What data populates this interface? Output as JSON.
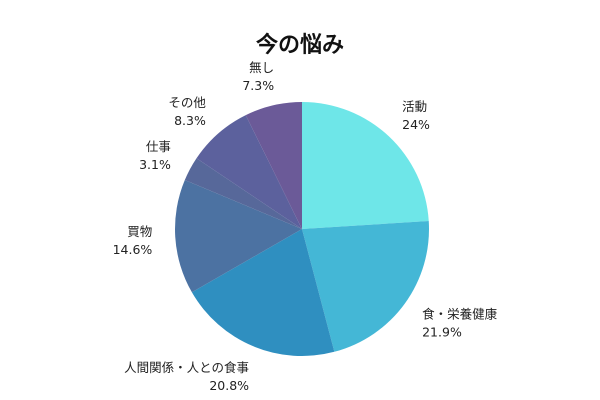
{
  "chart_data": {
    "type": "pie",
    "title": "今の悩み",
    "start_angle_deg": 0,
    "direction": "clockwise",
    "slices": [
      {
        "label": "活動",
        "value": 24.0,
        "value_label": "24%",
        "color": "#6ee6e8"
      },
      {
        "label": "食・栄養健康",
        "value": 21.9,
        "value_label": "21.9%",
        "color": "#44b7d6"
      },
      {
        "label": "人間関係・人との食事",
        "value": 20.8,
        "value_label": "20.8%",
        "color": "#2f8fc0"
      },
      {
        "label": "買物",
        "value": 14.6,
        "value_label": "14.6%",
        "color": "#4c72a2"
      },
      {
        "label": "仕事",
        "value": 3.1,
        "value_label": "3.1%",
        "color": "#57689a"
      },
      {
        "label": "その他",
        "value": 8.3,
        "value_label": "8.3%",
        "color": "#5c619d"
      },
      {
        "label": "無し",
        "value": 7.3,
        "value_label": "7.3%",
        "color": "#6b5a98"
      }
    ]
  }
}
